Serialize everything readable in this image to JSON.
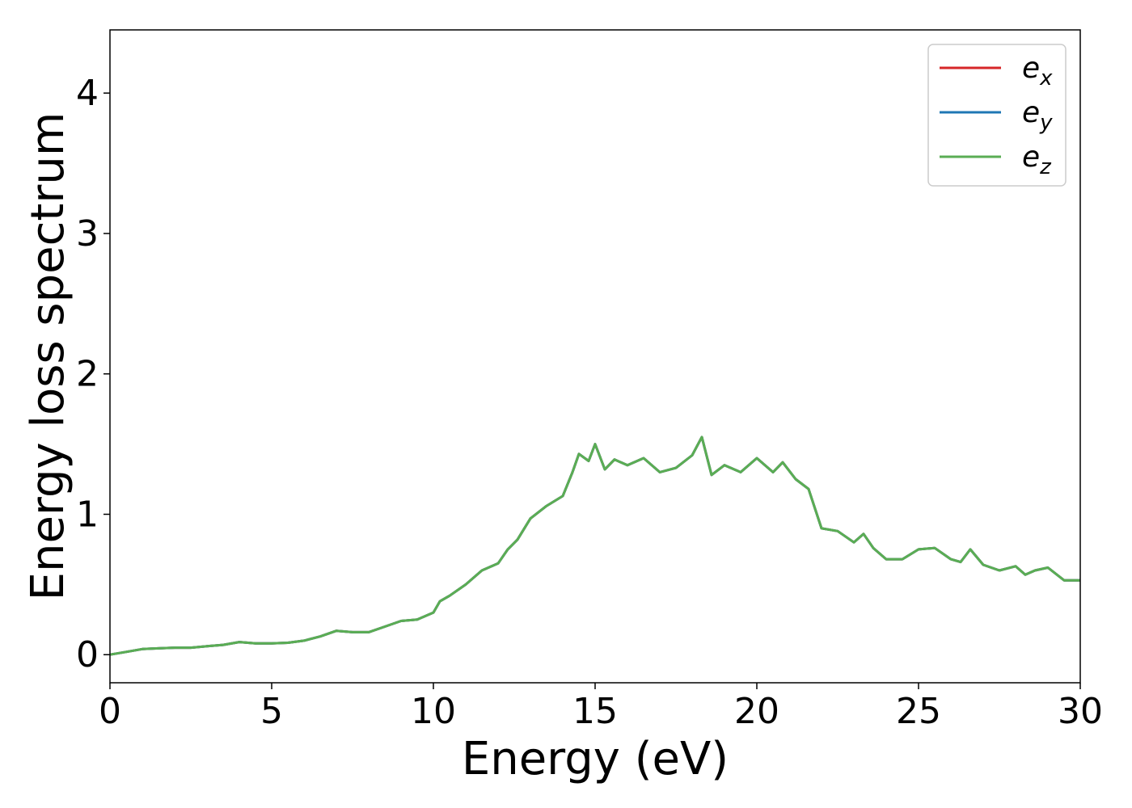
{
  "chart_data": {
    "type": "line",
    "title": "",
    "xlabel": "Energy (eV)",
    "ylabel": "Energy loss spectrum",
    "xlim": [
      0,
      30
    ],
    "ylim": [
      -0.2,
      4.45
    ],
    "xticks": [
      0,
      5,
      10,
      15,
      20,
      25,
      30
    ],
    "yticks": [
      0,
      1,
      2,
      3,
      4
    ],
    "grid": false,
    "legend_position": "top-right",
    "series": [
      {
        "name": "e",
        "subscript": "x",
        "color": "#d62728",
        "x": [
          0,
          0.5,
          1,
          1.5,
          2,
          2.5,
          3,
          3.5,
          4,
          4.5,
          5,
          5.5,
          6,
          6.5,
          7,
          7.5,
          8,
          8.5,
          9,
          9.5,
          10,
          10.2,
          10.5,
          11,
          11.5,
          12,
          12.3,
          12.6,
          13,
          13.5,
          14,
          14.3,
          14.5,
          14.8,
          15,
          15.3,
          15.6,
          16,
          16.5,
          17,
          17.5,
          18,
          18.3,
          18.6,
          19,
          19.5,
          20,
          20.5,
          20.8,
          21.2,
          21.6,
          22,
          22.5,
          23,
          23.3,
          23.6,
          24,
          24.5,
          25,
          25.5,
          26,
          26.3,
          26.6,
          27,
          27.5,
          28,
          28.3,
          28.6,
          29,
          29.5,
          30
        ],
        "y": [
          0.0,
          0.02,
          0.04,
          0.045,
          0.05,
          0.05,
          0.06,
          0.07,
          0.09,
          0.08,
          0.08,
          0.085,
          0.1,
          0.13,
          0.17,
          0.16,
          0.16,
          0.2,
          0.24,
          0.25,
          0.3,
          0.38,
          0.42,
          0.5,
          0.6,
          0.65,
          0.75,
          0.82,
          0.97,
          1.06,
          1.13,
          1.3,
          1.43,
          1.38,
          1.5,
          1.32,
          1.39,
          1.35,
          1.4,
          1.3,
          1.33,
          1.42,
          1.55,
          1.28,
          1.35,
          1.3,
          1.4,
          1.3,
          1.37,
          1.25,
          1.18,
          0.9,
          0.88,
          0.8,
          0.86,
          0.76,
          0.68,
          0.68,
          0.75,
          0.76,
          0.68,
          0.66,
          0.75,
          0.64,
          0.6,
          0.63,
          0.57,
          0.6,
          0.62,
          0.53,
          0.53
        ]
      },
      {
        "name": "e",
        "subscript": "y",
        "color": "#1f77b4",
        "x": [
          0,
          0.5,
          1,
          1.5,
          2,
          2.5,
          3,
          3.5,
          4,
          4.5,
          5,
          5.5,
          6,
          6.5,
          7,
          7.5,
          8,
          8.5,
          9,
          9.5,
          10,
          10.2,
          10.5,
          11,
          11.5,
          12,
          12.3,
          12.6,
          13,
          13.5,
          14,
          14.3,
          14.5,
          14.8,
          15,
          15.3,
          15.6,
          16,
          16.5,
          17,
          17.5,
          18,
          18.3,
          18.6,
          19,
          19.5,
          20,
          20.5,
          20.8,
          21.2,
          21.6,
          22,
          22.5,
          23,
          23.3,
          23.6,
          24,
          24.5,
          25,
          25.5,
          26,
          26.3,
          26.6,
          27,
          27.5,
          28,
          28.3,
          28.6,
          29,
          29.5,
          30
        ],
        "y": [
          0.0,
          0.02,
          0.04,
          0.045,
          0.05,
          0.05,
          0.06,
          0.07,
          0.09,
          0.08,
          0.08,
          0.085,
          0.1,
          0.13,
          0.17,
          0.16,
          0.16,
          0.2,
          0.24,
          0.25,
          0.3,
          0.38,
          0.42,
          0.5,
          0.6,
          0.65,
          0.75,
          0.82,
          0.97,
          1.06,
          1.13,
          1.3,
          1.43,
          1.38,
          1.5,
          1.32,
          1.39,
          1.35,
          1.4,
          1.3,
          1.33,
          1.42,
          1.55,
          1.28,
          1.35,
          1.3,
          1.4,
          1.3,
          1.37,
          1.25,
          1.18,
          0.9,
          0.88,
          0.8,
          0.86,
          0.76,
          0.68,
          0.68,
          0.75,
          0.76,
          0.68,
          0.66,
          0.75,
          0.64,
          0.6,
          0.63,
          0.57,
          0.6,
          0.62,
          0.53,
          0.53
        ]
      },
      {
        "name": "e",
        "subscript": "z",
        "color": "#5aad54",
        "x": [
          0,
          0.5,
          1,
          1.5,
          2,
          2.5,
          3,
          3.5,
          4,
          4.5,
          5,
          5.5,
          6,
          6.5,
          7,
          7.5,
          8,
          8.5,
          9,
          9.5,
          10,
          10.2,
          10.5,
          11,
          11.5,
          12,
          12.3,
          12.6,
          13,
          13.5,
          14,
          14.3,
          14.5,
          14.8,
          15,
          15.3,
          15.6,
          16,
          16.5,
          17,
          17.5,
          18,
          18.3,
          18.6,
          19,
          19.5,
          20,
          20.5,
          20.8,
          21.2,
          21.6,
          22,
          22.5,
          23,
          23.3,
          23.6,
          24,
          24.5,
          25,
          25.5,
          26,
          26.3,
          26.6,
          27,
          27.5,
          28,
          28.3,
          28.6,
          29,
          29.5,
          30
        ],
        "y": [
          0.0,
          0.02,
          0.04,
          0.045,
          0.05,
          0.05,
          0.06,
          0.07,
          0.09,
          0.08,
          0.08,
          0.085,
          0.1,
          0.13,
          0.17,
          0.16,
          0.16,
          0.2,
          0.24,
          0.25,
          0.3,
          0.38,
          0.42,
          0.5,
          0.6,
          0.65,
          0.75,
          0.82,
          0.97,
          1.06,
          1.13,
          1.3,
          1.43,
          1.38,
          1.5,
          1.32,
          1.39,
          1.35,
          1.4,
          1.3,
          1.33,
          1.42,
          1.55,
          1.28,
          1.35,
          1.3,
          1.4,
          1.3,
          1.37,
          1.25,
          1.18,
          0.9,
          0.88,
          0.8,
          0.86,
          0.76,
          0.68,
          0.68,
          0.75,
          0.76,
          0.68,
          0.66,
          0.75,
          0.64,
          0.6,
          0.63,
          0.57,
          0.6,
          0.62,
          0.53,
          0.53
        ]
      }
    ]
  }
}
